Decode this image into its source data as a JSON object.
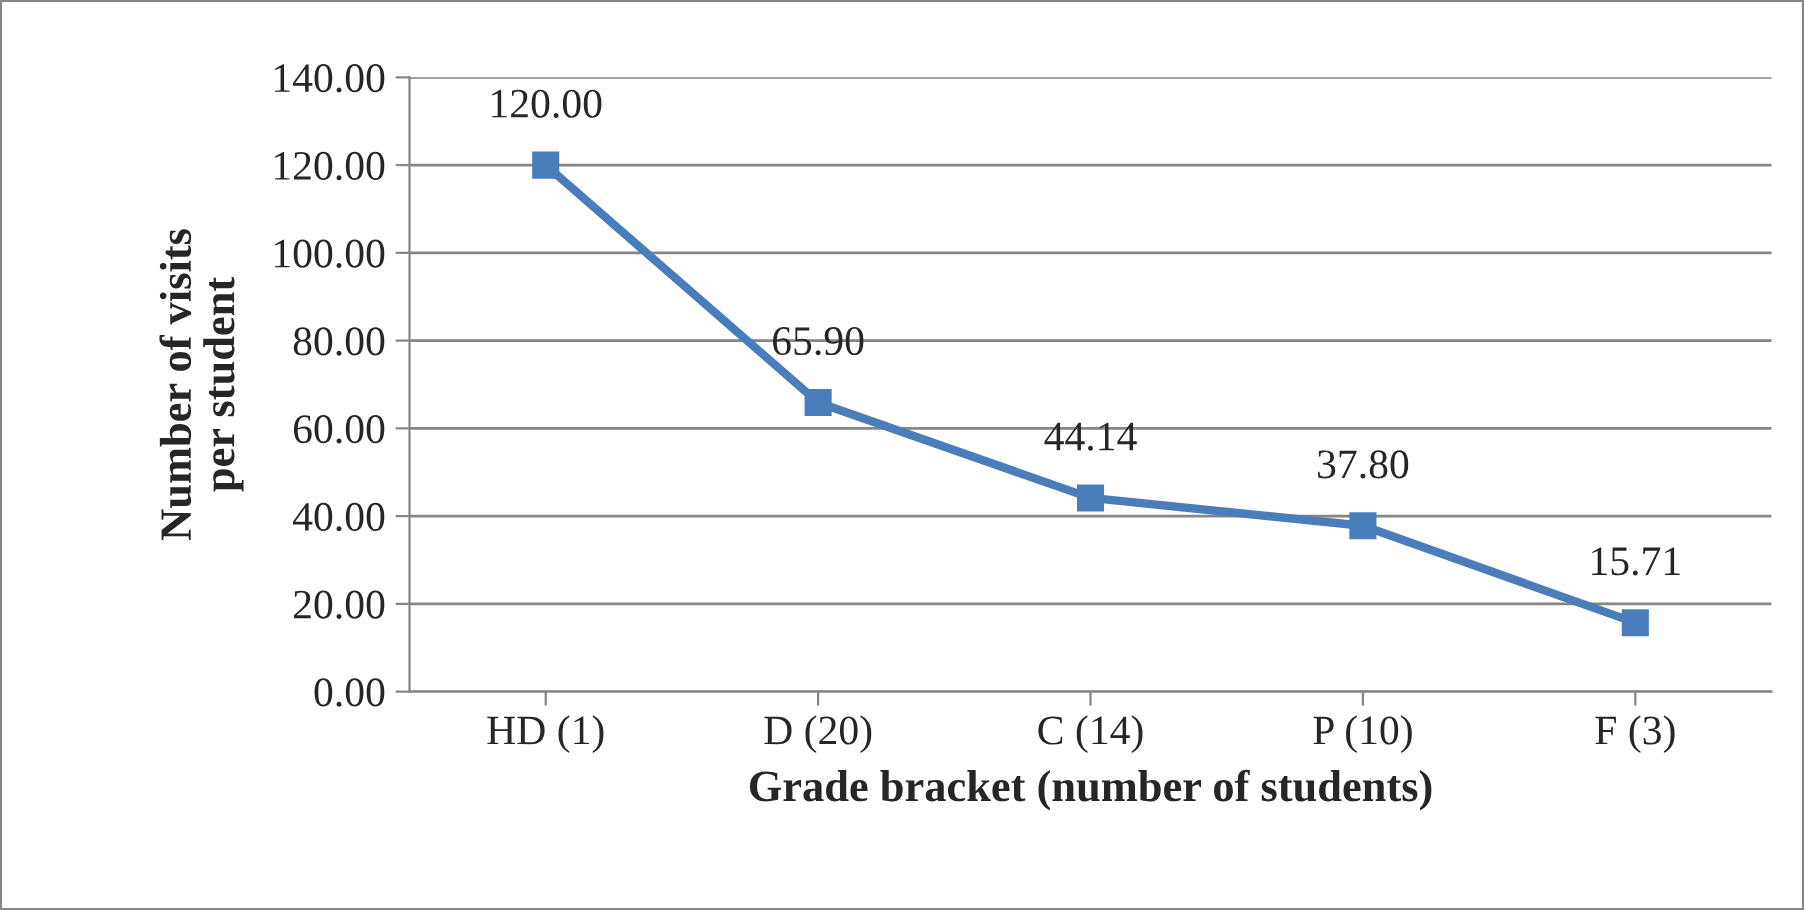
{
  "chart_data": {
    "type": "line",
    "xlabel": "Grade bracket (number of students)",
    "ylabel": "Number of visits\nper student",
    "categories": [
      "HD (1)",
      "D (20)",
      "C (14)",
      "P (10)",
      "F (3)"
    ],
    "series": [
      {
        "color": "#4a7ebb",
        "values": [
          120.0,
          65.9,
          44.14,
          37.8,
          15.71
        ],
        "value_labels": [
          "120.00",
          "65.90",
          "44.14",
          "37.80",
          "15.71"
        ]
      }
    ],
    "ylim": [
      0,
      140
    ],
    "yticks": [
      {
        "value": 0,
        "label": "0.00"
      },
      {
        "value": 20,
        "label": "20.00"
      },
      {
        "value": 40,
        "label": "40.00"
      },
      {
        "value": 60,
        "label": "60.00"
      },
      {
        "value": 80,
        "label": "80.00"
      },
      {
        "value": 100,
        "label": "100.00"
      },
      {
        "value": 120,
        "label": "120.00"
      },
      {
        "value": 140,
        "label": "140.00"
      }
    ],
    "grid": "y",
    "marker": "square",
    "line_style": "solid",
    "legend": false
  }
}
